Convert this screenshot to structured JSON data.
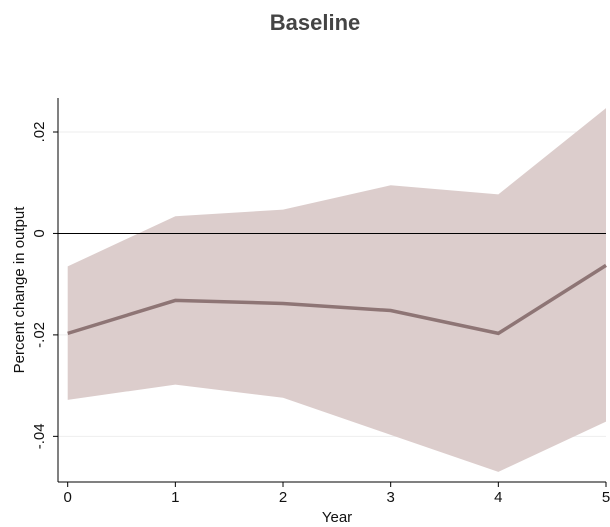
{
  "chart_data": {
    "type": "line",
    "title": "Baseline",
    "x_label": "Year",
    "y_label": "Percent change in output",
    "x": [
      0,
      1,
      2,
      3,
      4,
      5
    ],
    "values": [
      -0.0197,
      -0.0132,
      -0.0138,
      -0.0152,
      -0.0197,
      -0.0063
    ],
    "upper": [
      -0.0065,
      0.0034,
      0.0047,
      0.0095,
      0.0077,
      0.0247
    ],
    "lower": [
      -0.0328,
      -0.0298,
      -0.0324,
      -0.0397,
      -0.047,
      -0.0371
    ],
    "color": "#8e7575",
    "band_color": "#dccdcc",
    "reference_line": 0,
    "xlim": [
      -0.09,
      5.0
    ],
    "ylim": [
      -0.049,
      0.0267
    ],
    "xticks": [
      0,
      1,
      2,
      3,
      4,
      5
    ],
    "yticks": [
      {
        "value": -0.04,
        "label": "-.04"
      },
      {
        "value": -0.02,
        "label": "-.02"
      },
      0,
      {
        "value": 0.02,
        "label": ".02"
      }
    ],
    "grid": true
  }
}
